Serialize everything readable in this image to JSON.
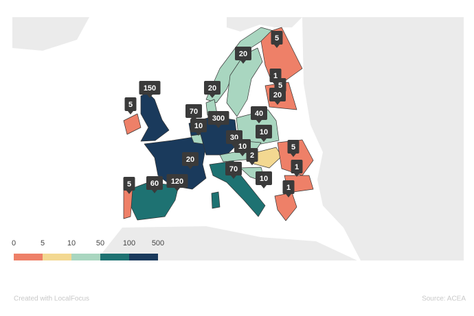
{
  "map": {
    "markers": [
      5,
      20,
      1,
      5,
      20,
      150,
      20,
      5,
      70,
      10,
      300,
      40,
      10,
      30,
      10,
      2,
      5,
      1,
      20,
      70,
      10,
      5,
      60,
      120,
      1
    ],
    "legend": {
      "breaks": [
        0,
        5,
        10,
        50,
        100,
        500
      ],
      "colors": [
        "#ee8068",
        "#f3d891",
        "#a9d6c0",
        "#1e7272",
        "#1a3a5c"
      ]
    }
  },
  "footer": {
    "credit": "Created with LocalFocus",
    "source": "Source: ACEA"
  }
}
